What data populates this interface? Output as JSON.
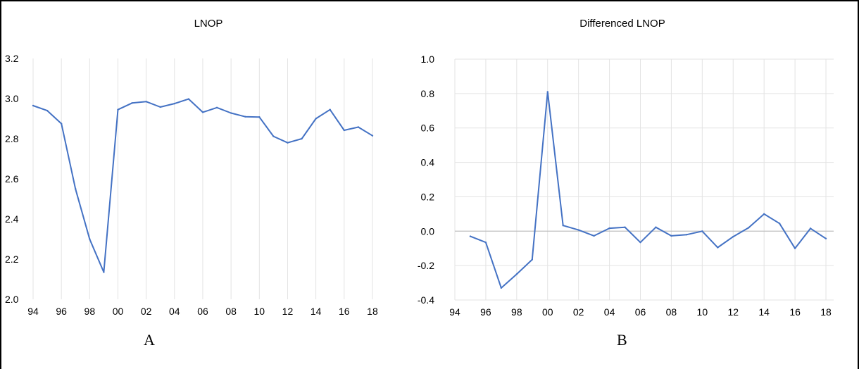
{
  "chart_data": [
    {
      "type": "line",
      "title": "LNOP",
      "panel_label": "A",
      "x": [
        1994,
        1995,
        1996,
        1997,
        1998,
        1999,
        2000,
        2001,
        2002,
        2003,
        2004,
        2005,
        2006,
        2007,
        2008,
        2009,
        2010,
        2011,
        2012,
        2013,
        2014,
        2015,
        2016,
        2017,
        2018
      ],
      "x_tick_labels": [
        "94",
        "96",
        "98",
        "00",
        "02",
        "04",
        "06",
        "08",
        "10",
        "12",
        "14",
        "16",
        "18"
      ],
      "y_tick_labels": [
        "2.0",
        "2.2",
        "2.4",
        "2.6",
        "2.8",
        "3.0",
        "3.2"
      ],
      "ylim": [
        2.0,
        3.2
      ],
      "series": [
        {
          "values": [
            2.965,
            2.94,
            2.875,
            2.55,
            2.3,
            2.135,
            2.945,
            2.978,
            2.985,
            2.958,
            2.975,
            2.998,
            2.932,
            2.955,
            2.928,
            2.91,
            2.908,
            2.812,
            2.78,
            2.8,
            2.9,
            2.945,
            2.842,
            2.858,
            2.815
          ]
        }
      ],
      "grid": "vertical",
      "color": "#4472C4"
    },
    {
      "type": "line",
      "title": "Differenced LNOP",
      "panel_label": "B",
      "x": [
        1995,
        1996,
        1997,
        1998,
        1999,
        2000,
        2001,
        2002,
        2003,
        2004,
        2005,
        2006,
        2007,
        2008,
        2009,
        2010,
        2011,
        2012,
        2013,
        2014,
        2015,
        2016,
        2017,
        2018
      ],
      "x_tick_labels": [
        "94",
        "96",
        "98",
        "00",
        "02",
        "04",
        "06",
        "08",
        "10",
        "12",
        "14",
        "16",
        "18"
      ],
      "y_tick_labels": [
        "-0.4",
        "-0.2",
        "0.0",
        "0.2",
        "0.4",
        "0.6",
        "0.8",
        "1.0"
      ],
      "ylim": [
        -0.4,
        1.0
      ],
      "series": [
        {
          "values": [
            -0.03,
            -0.065,
            -0.33,
            -0.25,
            -0.165,
            0.81,
            0.033,
            0.007,
            -0.027,
            0.017,
            0.023,
            -0.065,
            0.023,
            -0.027,
            -0.02,
            0.0,
            -0.095,
            -0.032,
            0.02,
            0.1,
            0.045,
            -0.1,
            0.016,
            -0.043
          ]
        }
      ],
      "grid": "both",
      "zero_line": true,
      "color": "#4472C4"
    }
  ],
  "colors": {
    "series": "#4472C4",
    "grid": "#E3E3E3",
    "zero_line": "#BFBFBF",
    "frame": "#000000"
  }
}
